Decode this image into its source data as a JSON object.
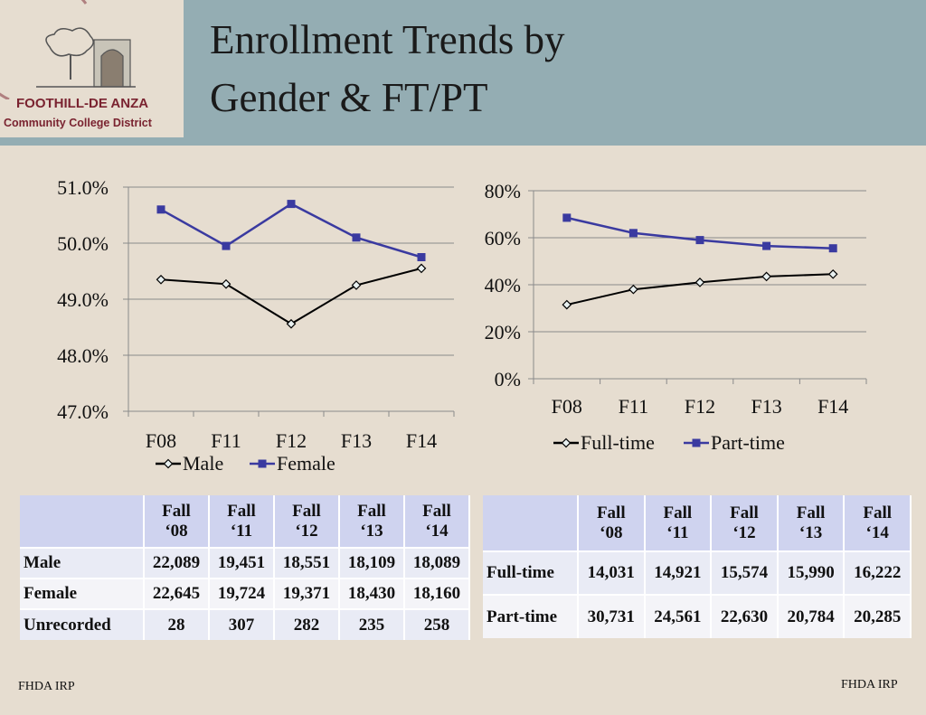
{
  "logo": {
    "line1": "FOOTHILL-DE ANZA",
    "line2": "Community College District"
  },
  "title": {
    "line1": "Enrollment Trends by",
    "line2": "Gender & FT/PT"
  },
  "chart_data": [
    {
      "type": "line",
      "categories": [
        "F08",
        "F11",
        "F12",
        "F13",
        "F14"
      ],
      "series": [
        {
          "name": "Male",
          "values": [
            49.35,
            49.27,
            48.56,
            49.25,
            49.55
          ],
          "color": "#000000",
          "marker": "diamond"
        },
        {
          "name": "Female",
          "values": [
            50.6,
            49.95,
            50.7,
            50.1,
            49.75
          ],
          "color": "#3a3aa0",
          "marker": "square"
        }
      ],
      "ylim": [
        47.0,
        51.0
      ],
      "yticks": [
        "51.0%",
        "50.0%",
        "49.0%",
        "48.0%",
        "47.0%"
      ],
      "grid": true,
      "legend": "bottom"
    },
    {
      "type": "line",
      "categories": [
        "F08",
        "F11",
        "F12",
        "F13",
        "F14"
      ],
      "series": [
        {
          "name": "Full-time",
          "values": [
            31.5,
            38,
            41,
            43.5,
            44.5
          ],
          "color": "#000000",
          "marker": "diamond"
        },
        {
          "name": "Part-time",
          "values": [
            68.5,
            62,
            59,
            56.5,
            55.5
          ],
          "color": "#3a3aa0",
          "marker": "square"
        }
      ],
      "ylim": [
        0,
        80
      ],
      "yticks": [
        "80%",
        "60%",
        "40%",
        "20%",
        "0%"
      ],
      "grid": true,
      "legend": "bottom"
    }
  ],
  "tables": {
    "gender": {
      "headers": [
        [
          "Fall",
          "‘08"
        ],
        [
          "Fall",
          "‘11"
        ],
        [
          "Fall",
          "‘12"
        ],
        [
          "Fall",
          "‘13"
        ],
        [
          "Fall",
          "‘14"
        ]
      ],
      "rows": [
        {
          "label": "Male",
          "values": [
            "22,089",
            "19,451",
            "18,551",
            "18,109",
            "18,089"
          ]
        },
        {
          "label": "Female",
          "values": [
            "22,645",
            "19,724",
            "19,371",
            "18,430",
            "18,160"
          ]
        },
        {
          "label": "Unrecorded",
          "values": [
            "28",
            "307",
            "282",
            "235",
            "258"
          ]
        }
      ]
    },
    "ftpt": {
      "headers": [
        [
          "Fall",
          "‘08"
        ],
        [
          "Fall",
          "‘11"
        ],
        [
          "Fall",
          "‘12"
        ],
        [
          "Fall",
          "‘13"
        ],
        [
          "Fall",
          "‘14"
        ]
      ],
      "rows": [
        {
          "label": "Full-time",
          "values": [
            "14,031",
            "14,921",
            "15,574",
            "15,990",
            "16,222"
          ]
        },
        {
          "label": "Part-time",
          "values": [
            "30,731",
            "24,561",
            "22,630",
            "20,784",
            "20,285"
          ]
        }
      ]
    }
  },
  "footer": {
    "left": "FHDA IRP",
    "right": "FHDA IRP"
  }
}
